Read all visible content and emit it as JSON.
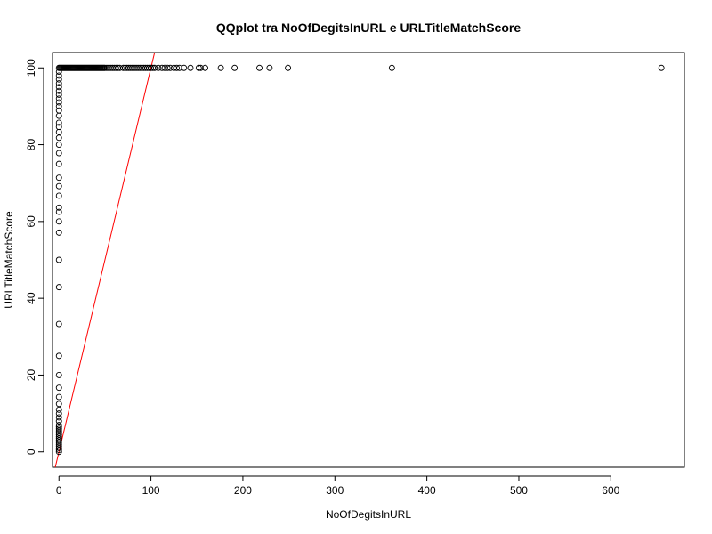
{
  "chart_data": {
    "type": "scatter",
    "title": "QQplot tra NoOfDegitsInURL e URLTitleMatchScore",
    "xlabel": "NoOfDegitsInURL",
    "ylabel": "URLTitleMatchScore",
    "xlim": [
      -7,
      680
    ],
    "ylim": [
      -4,
      104
    ],
    "xticks": [
      0,
      100,
      200,
      300,
      400,
      500,
      600
    ],
    "yticks": [
      0,
      20,
      40,
      60,
      80,
      100
    ],
    "grid": false,
    "legend": "none",
    "point_color": "#000000",
    "reference_line": {
      "color": "#ff0000",
      "intercept": 0,
      "slope": 1.0
    },
    "series": [
      {
        "points": [
          [
            0,
            0
          ],
          [
            0,
            0.5
          ],
          [
            0,
            1
          ],
          [
            0,
            1.5
          ],
          [
            0,
            2
          ],
          [
            0,
            2.5
          ],
          [
            0,
            3
          ],
          [
            0,
            3.5
          ],
          [
            0,
            4
          ],
          [
            0,
            4.5
          ],
          [
            0,
            5
          ],
          [
            0,
            5.5
          ],
          [
            0,
            6
          ],
          [
            0,
            6.5
          ],
          [
            0,
            7
          ],
          [
            0,
            8
          ],
          [
            0,
            9
          ],
          [
            0,
            10
          ],
          [
            0,
            11
          ],
          [
            0,
            12.5
          ],
          [
            0,
            14.3
          ],
          [
            0,
            16.7
          ],
          [
            0,
            20
          ],
          [
            0,
            25
          ],
          [
            0,
            33.3
          ],
          [
            0,
            42.9
          ],
          [
            0,
            50
          ],
          [
            0,
            57.1
          ],
          [
            0,
            60
          ],
          [
            0,
            62.5
          ],
          [
            0,
            63.6
          ],
          [
            0,
            66.7
          ],
          [
            0,
            69.2
          ],
          [
            0,
            71.4
          ],
          [
            0,
            75
          ],
          [
            0,
            77.8
          ],
          [
            0,
            80
          ],
          [
            0,
            81.8
          ],
          [
            0,
            83.3
          ],
          [
            0,
            84.6
          ],
          [
            0,
            85.7
          ],
          [
            0,
            87.5
          ],
          [
            0,
            88.9
          ],
          [
            0,
            90
          ],
          [
            0,
            91
          ],
          [
            0,
            92
          ],
          [
            0,
            93
          ],
          [
            0,
            94
          ],
          [
            0,
            95
          ],
          [
            0,
            96
          ],
          [
            0,
            97
          ],
          [
            0,
            98
          ],
          [
            0,
            99
          ],
          [
            0,
            100
          ],
          [
            1,
            100
          ],
          [
            2,
            100
          ],
          [
            3,
            100
          ],
          [
            4,
            100
          ],
          [
            5,
            100
          ],
          [
            6,
            100
          ],
          [
            7,
            100
          ],
          [
            8,
            100
          ],
          [
            9,
            100
          ],
          [
            10,
            100
          ],
          [
            11,
            100
          ],
          [
            12,
            100
          ],
          [
            13,
            100
          ],
          [
            14,
            100
          ],
          [
            15,
            100
          ],
          [
            16,
            100
          ],
          [
            17,
            100
          ],
          [
            18,
            100
          ],
          [
            19,
            100
          ],
          [
            20,
            100
          ],
          [
            21,
            100
          ],
          [
            22,
            100
          ],
          [
            23,
            100
          ],
          [
            24,
            100
          ],
          [
            25,
            100
          ],
          [
            26,
            100
          ],
          [
            27,
            100
          ],
          [
            28,
            100
          ],
          [
            29,
            100
          ],
          [
            30,
            100
          ],
          [
            31,
            100
          ],
          [
            32,
            100
          ],
          [
            33,
            100
          ],
          [
            34,
            100
          ],
          [
            35,
            100
          ],
          [
            36,
            100
          ],
          [
            37,
            100
          ],
          [
            38,
            100
          ],
          [
            39,
            100
          ],
          [
            40,
            100
          ],
          [
            41,
            100
          ],
          [
            42,
            100
          ],
          [
            43,
            100
          ],
          [
            44,
            100
          ],
          [
            45,
            100
          ],
          [
            46,
            100
          ],
          [
            47,
            100
          ],
          [
            48,
            100
          ],
          [
            49,
            100
          ],
          [
            50,
            100
          ],
          [
            52,
            100
          ],
          [
            54,
            100
          ],
          [
            56,
            100
          ],
          [
            58,
            100
          ],
          [
            60,
            100
          ],
          [
            62,
            100
          ],
          [
            64,
            100
          ],
          [
            66,
            100
          ],
          [
            70,
            100
          ],
          [
            72,
            100
          ],
          [
            74,
            100
          ],
          [
            76,
            100
          ],
          [
            78,
            100
          ],
          [
            80,
            100
          ],
          [
            82,
            100
          ],
          [
            84,
            100
          ],
          [
            86,
            100
          ],
          [
            88,
            100
          ],
          [
            90,
            100
          ],
          [
            92,
            100
          ],
          [
            94,
            100
          ],
          [
            96,
            100
          ],
          [
            98,
            100
          ],
          [
            100,
            100
          ],
          [
            102,
            100
          ],
          [
            104,
            100
          ],
          [
            108,
            100
          ],
          [
            112,
            100
          ],
          [
            115,
            100
          ],
          [
            118,
            100
          ],
          [
            121,
            100
          ],
          [
            125,
            100
          ],
          [
            128,
            100
          ],
          [
            131,
            100
          ],
          [
            136,
            100
          ],
          [
            143,
            100
          ],
          [
            152,
            100
          ],
          [
            154,
            100
          ],
          [
            159,
            100
          ],
          [
            176,
            100
          ],
          [
            191,
            100
          ],
          [
            218,
            100
          ],
          [
            229,
            100
          ],
          [
            249,
            100
          ],
          [
            362,
            100
          ],
          [
            655,
            100
          ]
        ]
      }
    ]
  }
}
